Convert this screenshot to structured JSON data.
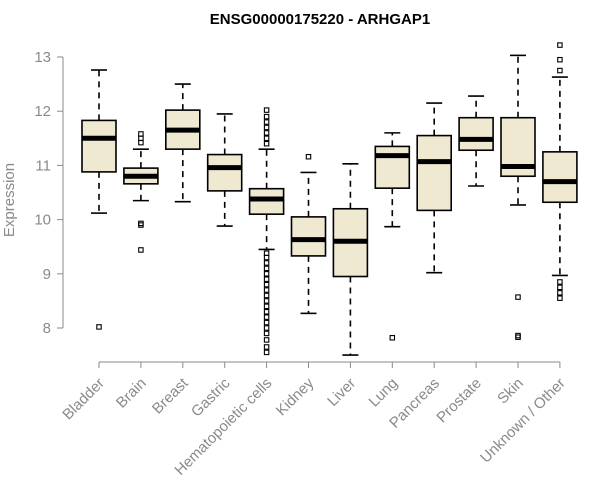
{
  "chart_data": {
    "type": "boxplot",
    "title": "ENSG00000175220 - ARHGAP1",
    "xlabel": "",
    "ylabel": "Expression",
    "ylim": [
      7.5,
      13.1
    ],
    "yticks": [
      8,
      9,
      10,
      11,
      12,
      13
    ],
    "categories": [
      "Bladder",
      "Brain",
      "Breast",
      "Gastric",
      "Hematopoietic cells",
      "Kidney",
      "Liver",
      "Lung",
      "Pancreas",
      "Prostate",
      "Skin",
      "Unknown / Other"
    ],
    "boxes": [
      {
        "name": "Bladder",
        "whislo": 10.12,
        "q1": 10.88,
        "med": 11.5,
        "q3": 11.83,
        "whishi": 12.76,
        "fliers": [
          8.02
        ]
      },
      {
        "name": "Brain",
        "whislo": 10.35,
        "q1": 10.66,
        "med": 10.8,
        "q3": 10.95,
        "whishi": 11.3,
        "fliers": [
          9.44,
          9.9,
          9.93,
          11.42,
          11.5,
          11.58
        ]
      },
      {
        "name": "Breast",
        "whislo": 10.33,
        "q1": 11.3,
        "med": 11.65,
        "q3": 12.02,
        "whishi": 12.5,
        "fliers": []
      },
      {
        "name": "Gastric",
        "whislo": 9.88,
        "q1": 10.53,
        "med": 10.96,
        "q3": 11.2,
        "whishi": 11.95,
        "fliers": []
      },
      {
        "name": "Hematopoietic cells",
        "whislo": 9.45,
        "q1": 10.1,
        "med": 10.38,
        "q3": 10.57,
        "whishi": 11.3,
        "fliers": [
          7.55,
          7.65,
          7.78,
          7.9,
          8.0,
          8.1,
          8.2,
          8.3,
          8.4,
          8.5,
          8.6,
          8.7,
          8.8,
          8.9,
          9.0,
          9.1,
          9.2,
          9.3,
          9.38,
          11.4,
          11.5,
          11.6,
          11.7,
          11.8,
          11.9,
          12.02
        ]
      },
      {
        "name": "Kidney",
        "whislo": 8.27,
        "q1": 9.33,
        "med": 9.63,
        "q3": 10.05,
        "whishi": 10.87,
        "fliers": [
          11.16
        ]
      },
      {
        "name": "Liver",
        "whislo": 7.5,
        "q1": 8.95,
        "med": 9.6,
        "q3": 10.2,
        "whishi": 11.03,
        "fliers": []
      },
      {
        "name": "Lung",
        "whislo": 9.87,
        "q1": 10.58,
        "med": 11.18,
        "q3": 11.35,
        "whishi": 11.6,
        "fliers": [
          7.82
        ]
      },
      {
        "name": "Pancreas",
        "whislo": 9.02,
        "q1": 10.17,
        "med": 11.07,
        "q3": 11.55,
        "whishi": 12.15,
        "fliers": []
      },
      {
        "name": "Prostate",
        "whislo": 10.62,
        "q1": 11.28,
        "med": 11.48,
        "q3": 11.88,
        "whishi": 12.28,
        "fliers": []
      },
      {
        "name": "Skin",
        "whislo": 10.27,
        "q1": 10.8,
        "med": 10.98,
        "q3": 11.88,
        "whishi": 13.03,
        "fliers": [
          7.83,
          7.86,
          8.57
        ]
      },
      {
        "name": "Unknown / Other",
        "whislo": 8.97,
        "q1": 10.32,
        "med": 10.7,
        "q3": 11.25,
        "whishi": 12.63,
        "fliers": [
          8.55,
          8.65,
          8.75,
          8.85,
          12.75,
          12.95,
          13.22
        ]
      }
    ]
  }
}
